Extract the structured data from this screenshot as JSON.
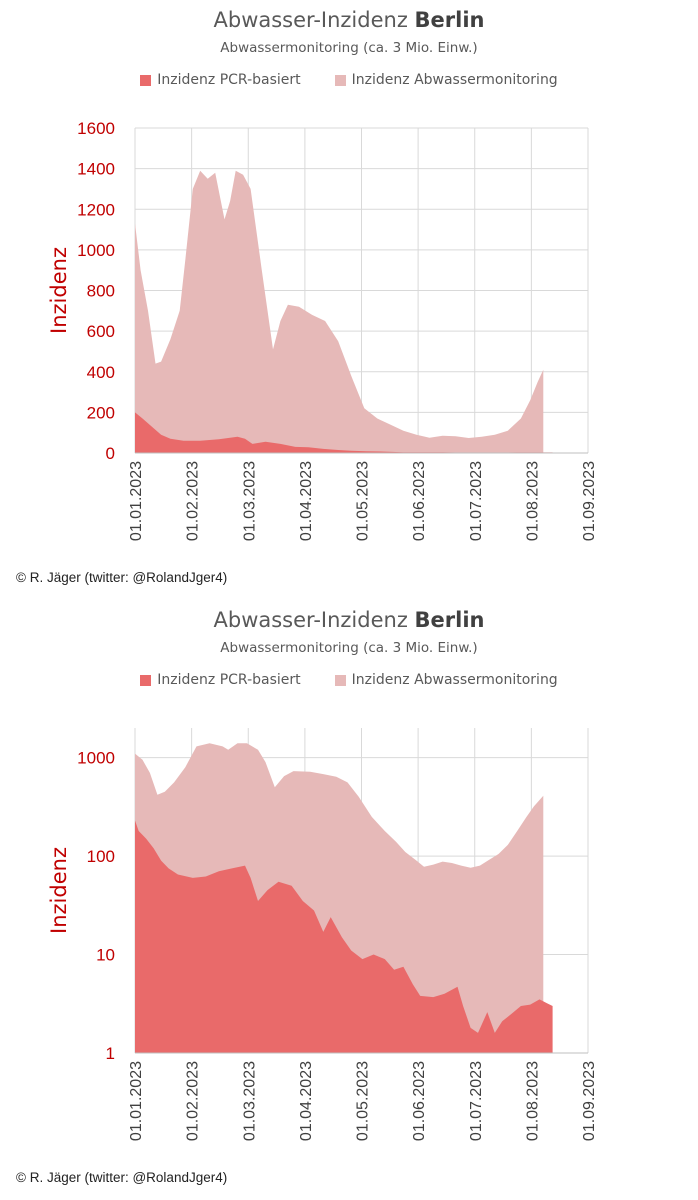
{
  "colors": {
    "pcr": "#e96a6a",
    "abwasser": "#e6b9b8",
    "axis_text": "#c00000",
    "tick_text": "#404040",
    "grid": "#d9d9d9"
  },
  "copyright": "© R. Jäger (twitter: @RolandJger4)",
  "chart_data": [
    {
      "type": "area",
      "title_prefix": "Abwasser-Inzidenz ",
      "title_bold": "Berlin",
      "subtitle": "Abwassermonitoring (ca. 3 Mio. Einw.)",
      "ylabel": "Inzidenz",
      "yscale": "linear",
      "ylim": [
        0,
        1600
      ],
      "yticks": [
        0,
        200,
        400,
        600,
        800,
        1000,
        1200,
        1400,
        1600
      ],
      "ytick_labels": [
        "0",
        "200",
        "400",
        "600",
        "800",
        "1000",
        "1200",
        "1400",
        "1600"
      ],
      "xlim": [
        "2023-01-01",
        "2023-09-01"
      ],
      "xtick_labels": [
        "01.01.2023",
        "01.02.2023",
        "01.03.2023",
        "01.04.2023",
        "01.05.2023",
        "01.06.2023",
        "01.07.2023",
        "01.08.2023",
        "01.09.2023"
      ],
      "legend": [
        "Inzidenz PCR-basiert",
        "Inzidenz Abwassermonitoring"
      ],
      "legend_position": "top-center",
      "grid": true,
      "series": [
        {
          "name": "Inzidenz Abwassermonitoring",
          "style": "area",
          "points": [
            [
              "2023-01-01",
              1130
            ],
            [
              "2023-01-04",
              900
            ],
            [
              "2023-01-08",
              700
            ],
            [
              "2023-01-12",
              440
            ],
            [
              "2023-01-15",
              450
            ],
            [
              "2023-01-20",
              560
            ],
            [
              "2023-01-25",
              700
            ],
            [
              "2023-01-28",
              950
            ],
            [
              "2023-02-01",
              1300
            ],
            [
              "2023-02-05",
              1390
            ],
            [
              "2023-02-09",
              1350
            ],
            [
              "2023-02-13",
              1380
            ],
            [
              "2023-02-18",
              1150
            ],
            [
              "2023-02-21",
              1240
            ],
            [
              "2023-02-24",
              1390
            ],
            [
              "2023-02-28",
              1370
            ],
            [
              "2023-03-04",
              1300
            ],
            [
              "2023-03-10",
              900
            ],
            [
              "2023-03-16",
              510
            ],
            [
              "2023-03-20",
              650
            ],
            [
              "2023-03-24",
              730
            ],
            [
              "2023-03-30",
              720
            ],
            [
              "2023-04-06",
              680
            ],
            [
              "2023-04-13",
              650
            ],
            [
              "2023-04-20",
              550
            ],
            [
              "2023-04-27",
              380
            ],
            [
              "2023-05-04",
              220
            ],
            [
              "2023-05-11",
              170
            ],
            [
              "2023-05-18",
              140
            ],
            [
              "2023-05-25",
              110
            ],
            [
              "2023-06-01",
              90
            ],
            [
              "2023-06-08",
              75
            ],
            [
              "2023-06-15",
              85
            ],
            [
              "2023-06-22",
              82
            ],
            [
              "2023-06-29",
              74
            ],
            [
              "2023-07-06",
              80
            ],
            [
              "2023-07-13",
              90
            ],
            [
              "2023-07-20",
              110
            ],
            [
              "2023-07-27",
              170
            ],
            [
              "2023-08-01",
              260
            ],
            [
              "2023-08-05",
              350
            ],
            [
              "2023-08-08",
              410
            ]
          ]
        },
        {
          "name": "Inzidenz PCR-basiert",
          "style": "area",
          "points": [
            [
              "2023-01-01",
              200
            ],
            [
              "2023-01-05",
              170
            ],
            [
              "2023-01-10",
              130
            ],
            [
              "2023-01-15",
              90
            ],
            [
              "2023-01-20",
              70
            ],
            [
              "2023-01-27",
              60
            ],
            [
              "2023-02-05",
              60
            ],
            [
              "2023-02-15",
              68
            ],
            [
              "2023-02-25",
              80
            ],
            [
              "2023-03-01",
              70
            ],
            [
              "2023-03-05",
              45
            ],
            [
              "2023-03-12",
              55
            ],
            [
              "2023-03-20",
              45
            ],
            [
              "2023-03-28",
              30
            ],
            [
              "2023-04-04",
              28
            ],
            [
              "2023-04-12",
              20
            ],
            [
              "2023-04-20",
              15
            ],
            [
              "2023-04-27",
              11
            ],
            [
              "2023-05-05",
              9
            ],
            [
              "2023-05-15",
              7
            ],
            [
              "2023-05-25",
              4
            ],
            [
              "2023-06-05",
              3.5
            ],
            [
              "2023-06-15",
              4
            ],
            [
              "2023-06-25",
              2
            ],
            [
              "2023-07-05",
              2
            ],
            [
              "2023-07-15",
              2.5
            ],
            [
              "2023-07-25",
              3
            ],
            [
              "2023-08-01",
              3
            ],
            [
              "2023-08-08",
              3
            ],
            [
              "2023-08-13",
              3
            ]
          ]
        }
      ]
    },
    {
      "type": "area",
      "title_prefix": "Abwasser-Inzidenz ",
      "title_bold": "Berlin",
      "subtitle": "Abwassermonitoring (ca. 3 Mio. Einw.)",
      "ylabel": "Inzidenz",
      "yscale": "log",
      "ylim": [
        1,
        2000
      ],
      "yticks": [
        1,
        10,
        100,
        1000
      ],
      "ytick_labels": [
        "1",
        "10",
        "100",
        "1000"
      ],
      "xlim": [
        "2023-01-01",
        "2023-09-01"
      ],
      "xtick_labels": [
        "01.01.2023",
        "01.02.2023",
        "01.03.2023",
        "01.04.2023",
        "01.05.2023",
        "01.06.2023",
        "01.07.2023",
        "01.08.2023",
        "01.09.2023"
      ],
      "legend": [
        "Inzidenz PCR-basiert",
        "Inzidenz Abwassermonitoring"
      ],
      "legend_position": "top-center",
      "grid": true,
      "series": [
        {
          "name": "Inzidenz Abwassermonitoring",
          "style": "area",
          "points": [
            [
              "2023-01-01",
              1100
            ],
            [
              "2023-01-05",
              950
            ],
            [
              "2023-01-09",
              700
            ],
            [
              "2023-01-13",
              420
            ],
            [
              "2023-01-17",
              450
            ],
            [
              "2023-01-22",
              560
            ],
            [
              "2023-01-28",
              800
            ],
            [
              "2023-02-03",
              1300
            ],
            [
              "2023-02-10",
              1400
            ],
            [
              "2023-02-17",
              1300
            ],
            [
              "2023-02-20",
              1200
            ],
            [
              "2023-02-25",
              1400
            ],
            [
              "2023-03-02",
              1400
            ],
            [
              "2023-03-08",
              1200
            ],
            [
              "2023-03-12",
              900
            ],
            [
              "2023-03-17",
              500
            ],
            [
              "2023-03-22",
              650
            ],
            [
              "2023-03-27",
              730
            ],
            [
              "2023-04-05",
              720
            ],
            [
              "2023-04-12",
              680
            ],
            [
              "2023-04-19",
              640
            ],
            [
              "2023-04-25",
              560
            ],
            [
              "2023-05-01",
              400
            ],
            [
              "2023-05-08",
              250
            ],
            [
              "2023-05-15",
              180
            ],
            [
              "2023-05-21",
              140
            ],
            [
              "2023-05-26",
              110
            ],
            [
              "2023-06-01",
              90
            ],
            [
              "2023-06-05",
              78
            ],
            [
              "2023-06-10",
              82
            ],
            [
              "2023-06-15",
              88
            ],
            [
              "2023-06-20",
              85
            ],
            [
              "2023-06-25",
              80
            ],
            [
              "2023-06-30",
              76
            ],
            [
              "2023-07-05",
              80
            ],
            [
              "2023-07-10",
              92
            ],
            [
              "2023-07-15",
              105
            ],
            [
              "2023-07-20",
              130
            ],
            [
              "2023-07-25",
              180
            ],
            [
              "2023-07-30",
              250
            ],
            [
              "2023-08-03",
              320
            ],
            [
              "2023-08-08",
              410
            ]
          ]
        },
        {
          "name": "Inzidenz PCR-basiert",
          "style": "area",
          "points": [
            [
              "2023-01-01",
              230
            ],
            [
              "2023-01-03",
              180
            ],
            [
              "2023-01-07",
              150
            ],
            [
              "2023-01-11",
              120
            ],
            [
              "2023-01-15",
              90
            ],
            [
              "2023-01-19",
              75
            ],
            [
              "2023-01-24",
              65
            ],
            [
              "2023-02-01",
              60
            ],
            [
              "2023-02-08",
              62
            ],
            [
              "2023-02-15",
              70
            ],
            [
              "2023-02-22",
              75
            ],
            [
              "2023-03-01",
              80
            ],
            [
              "2023-03-04",
              60
            ],
            [
              "2023-03-08",
              35
            ],
            [
              "2023-03-13",
              45
            ],
            [
              "2023-03-19",
              55
            ],
            [
              "2023-03-26",
              50
            ],
            [
              "2023-04-01",
              35
            ],
            [
              "2023-04-07",
              28
            ],
            [
              "2023-04-12",
              17
            ],
            [
              "2023-04-16",
              24
            ],
            [
              "2023-04-22",
              15
            ],
            [
              "2023-04-27",
              11
            ],
            [
              "2023-05-03",
              9
            ],
            [
              "2023-05-09",
              10
            ],
            [
              "2023-05-15",
              9
            ],
            [
              "2023-05-20",
              7
            ],
            [
              "2023-05-25",
              7.5
            ],
            [
              "2023-05-30",
              5
            ],
            [
              "2023-06-03",
              3.8
            ],
            [
              "2023-06-10",
              3.7
            ],
            [
              "2023-06-16",
              4
            ],
            [
              "2023-06-23",
              4.7
            ],
            [
              "2023-06-26",
              3
            ],
            [
              "2023-06-30",
              1.8
            ],
            [
              "2023-07-04",
              1.6
            ],
            [
              "2023-07-09",
              2.6
            ],
            [
              "2023-07-13",
              1.6
            ],
            [
              "2023-07-17",
              2.1
            ],
            [
              "2023-07-22",
              2.5
            ],
            [
              "2023-07-27",
              3
            ],
            [
              "2023-08-01",
              3.1
            ],
            [
              "2023-08-06",
              3.5
            ],
            [
              "2023-08-10",
              3.2
            ],
            [
              "2023-08-13",
              3
            ]
          ]
        }
      ]
    }
  ]
}
